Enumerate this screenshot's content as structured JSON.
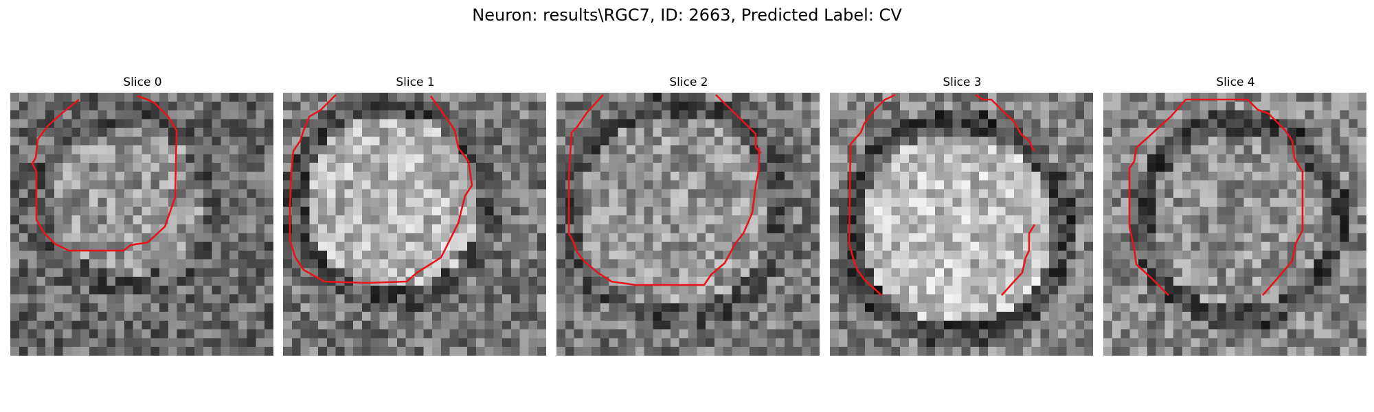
{
  "title": "Neuron: results\\RGC7, ID: 2663, Predicted Label: CV",
  "panels": [
    {
      "title": "Slice 0"
    },
    {
      "title": "Slice 1"
    },
    {
      "title": "Slice 2"
    },
    {
      "title": "Slice 3"
    },
    {
      "title": "Slice 4"
    }
  ],
  "colors": {
    "contour": "#e8141b",
    "background": "#ffffff"
  }
}
